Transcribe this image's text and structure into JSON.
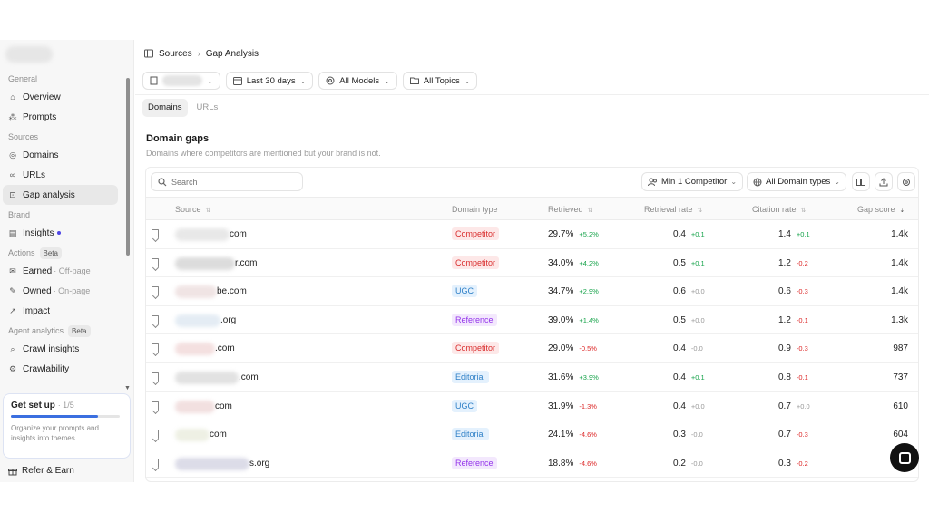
{
  "sidebar": {
    "sections": [
      {
        "label": "General",
        "badge": "",
        "items": [
          {
            "label": "Overview",
            "sub": "",
            "icon": "home-icon",
            "active": false
          },
          {
            "label": "Prompts",
            "sub": "",
            "icon": "prompts-icon",
            "active": false
          }
        ]
      },
      {
        "label": "Sources",
        "badge": "",
        "items": [
          {
            "label": "Domains",
            "sub": "",
            "icon": "globe-icon",
            "active": false
          },
          {
            "label": "URLs",
            "sub": "",
            "icon": "link-icon",
            "active": false
          },
          {
            "label": "Gap analysis",
            "sub": "",
            "icon": "gap-icon",
            "active": true
          }
        ]
      },
      {
        "label": "Brand",
        "badge": "",
        "items": [
          {
            "label": "Insights",
            "sub": "",
            "icon": "insights-icon",
            "active": false,
            "dot": true
          }
        ]
      },
      {
        "label": "Actions",
        "badge": "Beta",
        "items": [
          {
            "label": "Earned",
            "sub": "· Off-page",
            "icon": "earned-icon",
            "active": false
          },
          {
            "label": "Owned",
            "sub": "· On-page",
            "icon": "owned-icon",
            "active": false
          },
          {
            "label": "Impact",
            "sub": "",
            "icon": "impact-icon",
            "active": false
          }
        ]
      },
      {
        "label": "Agent analytics",
        "badge": "Beta",
        "items": [
          {
            "label": "Crawl insights",
            "sub": "",
            "icon": "search-icon",
            "active": false
          },
          {
            "label": "Crawlability",
            "sub": "",
            "icon": "crawl-icon",
            "active": false
          }
        ]
      }
    ],
    "setup": {
      "title": "Get set up",
      "progress_text": "· 1/5",
      "progress": 0.8,
      "desc": "Organize your prompts and insights into themes."
    },
    "refer_label": "Refer & Earn"
  },
  "breadcrumb": {
    "root": "Sources",
    "current": "Gap Analysis"
  },
  "filters": {
    "date": "Last 30 days",
    "models": "All Models",
    "topics": "All Topics"
  },
  "tabs": [
    {
      "label": "Domains",
      "active": true
    },
    {
      "label": "URLs",
      "active": false
    }
  ],
  "header": {
    "title": "Domain gaps",
    "subtitle": "Domains where competitors are mentioned but your brand is not."
  },
  "toolbar": {
    "search_placeholder": "Search",
    "competitor_filter": "Min 1 Competitor",
    "domain_type_filter": "All Domain types"
  },
  "columns": {
    "source": "Source",
    "type": "Domain type",
    "retrieved": "Retrieved",
    "retrieval_rate": "Retrieval rate",
    "citation_rate": "Citation rate",
    "gap_score": "Gap score"
  },
  "type_colors": {
    "Competitor": {
      "bg": "#fde8e8",
      "fg": "#d92d2d"
    },
    "UGC": {
      "bg": "#e4f1fd",
      "fg": "#2f80c7"
    },
    "Reference": {
      "bg": "#f3e8fd",
      "fg": "#9333ea"
    },
    "Editorial": {
      "bg": "#e4f1fd",
      "fg": "#2f80c7"
    }
  },
  "rows": [
    {
      "source_suffix": "com",
      "type": "Competitor",
      "retrieved": "29.7%",
      "retrieved_delta": "+5.2%",
      "retrieval_rate": "0.4",
      "rr_delta": "+0.1",
      "citation_rate": "1.4",
      "cr_delta": "+0.1",
      "gap_score": "1.4k"
    },
    {
      "source_suffix": "r.com",
      "type": "Competitor",
      "retrieved": "34.0%",
      "retrieved_delta": "+4.2%",
      "retrieval_rate": "0.5",
      "rr_delta": "+0.1",
      "citation_rate": "1.2",
      "cr_delta": "-0.2",
      "gap_score": "1.4k"
    },
    {
      "source_suffix": "be.com",
      "type": "UGC",
      "retrieved": "34.7%",
      "retrieved_delta": "+2.9%",
      "retrieval_rate": "0.6",
      "rr_delta": "+0.0",
      "citation_rate": "0.6",
      "cr_delta": "-0.3",
      "gap_score": "1.4k"
    },
    {
      "source_suffix": ".org",
      "type": "Reference",
      "retrieved": "39.0%",
      "retrieved_delta": "+1.4%",
      "retrieval_rate": "0.5",
      "rr_delta": "+0.0",
      "citation_rate": "1.2",
      "cr_delta": "-0.1",
      "gap_score": "1.3k"
    },
    {
      "source_suffix": ".com",
      "type": "Competitor",
      "retrieved": "29.0%",
      "retrieved_delta": "-0.5%",
      "retrieval_rate": "0.4",
      "rr_delta": "-0.0",
      "citation_rate": "0.9",
      "cr_delta": "-0.3",
      "gap_score": "987"
    },
    {
      "source_suffix": ".com",
      "type": "Editorial",
      "retrieved": "31.6%",
      "retrieved_delta": "+3.9%",
      "retrieval_rate": "0.4",
      "rr_delta": "+0.1",
      "citation_rate": "0.8",
      "cr_delta": "-0.1",
      "gap_score": "737"
    },
    {
      "source_suffix": "com",
      "type": "UGC",
      "retrieved": "31.9%",
      "retrieved_delta": "-1.3%",
      "retrieval_rate": "0.4",
      "rr_delta": "+0.0",
      "citation_rate": "0.7",
      "cr_delta": "+0.0",
      "gap_score": "610"
    },
    {
      "source_suffix": "com",
      "type": "Editorial",
      "retrieved": "24.1%",
      "retrieved_delta": "-4.6%",
      "retrieval_rate": "0.3",
      "rr_delta": "-0.0",
      "citation_rate": "0.7",
      "cr_delta": "-0.3",
      "gap_score": "604"
    },
    {
      "source_suffix": "s.org",
      "type": "Reference",
      "retrieved": "18.8%",
      "retrieved_delta": "-4.6%",
      "retrieval_rate": "0.2",
      "rr_delta": "-0.0",
      "citation_rate": "0.3",
      "cr_delta": "-0.2",
      "gap_score": ""
    }
  ]
}
